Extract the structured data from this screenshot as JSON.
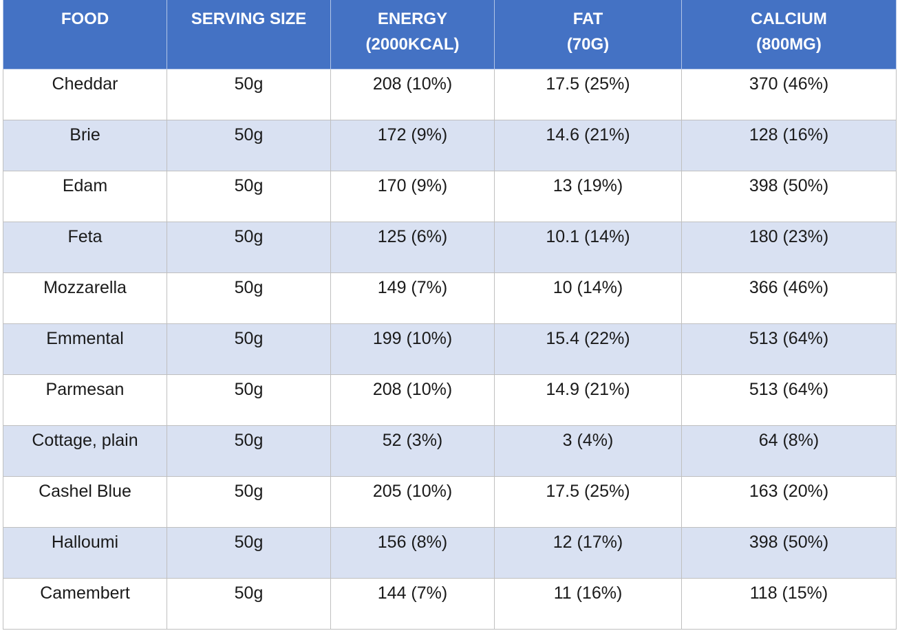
{
  "table": {
    "headers": [
      {
        "line1": "FOOD",
        "line2": ""
      },
      {
        "line1": "SERVING SIZE",
        "line2": ""
      },
      {
        "line1": "ENERGY",
        "line2": "(2000KCAL)"
      },
      {
        "line1": "FAT",
        "line2": "(70G)"
      },
      {
        "line1": "CALCIUM",
        "line2": "(800MG)"
      }
    ],
    "rows": [
      [
        "Cheddar",
        "50g",
        "208 (10%)",
        "17.5 (25%)",
        "370 (46%)"
      ],
      [
        "Brie",
        "50g",
        "172 (9%)",
        "14.6 (21%)",
        "128 (16%)"
      ],
      [
        "Edam",
        "50g",
        "170 (9%)",
        "13 (19%)",
        "398 (50%)"
      ],
      [
        "Feta",
        "50g",
        "125 (6%)",
        "10.1 (14%)",
        "180 (23%)"
      ],
      [
        "Mozzarella",
        "50g",
        "149 (7%)",
        "10 (14%)",
        "366 (46%)"
      ],
      [
        "Emmental",
        "50g",
        "199 (10%)",
        "15.4 (22%)",
        "513 (64%)"
      ],
      [
        "Parmesan",
        "50g",
        "208 (10%)",
        "14.9 (21%)",
        "513 (64%)"
      ],
      [
        "Cottage, plain",
        "50g",
        "52 (3%)",
        "3 (4%)",
        "64 (8%)"
      ],
      [
        "Cashel Blue",
        "50g",
        "205 (10%)",
        "17.5 (25%)",
        "163 (20%)"
      ],
      [
        "Halloumi",
        "50g",
        "156 (8%)",
        "12 (17%)",
        "398 (50%)"
      ],
      [
        "Camembert",
        "50g",
        "144 (7%)",
        "11 (16%)",
        "118 (15%)"
      ]
    ]
  },
  "colors": {
    "header_bg": "#4472c4",
    "band_bg": "#d9e1f2",
    "plain_bg": "#ffffff"
  }
}
